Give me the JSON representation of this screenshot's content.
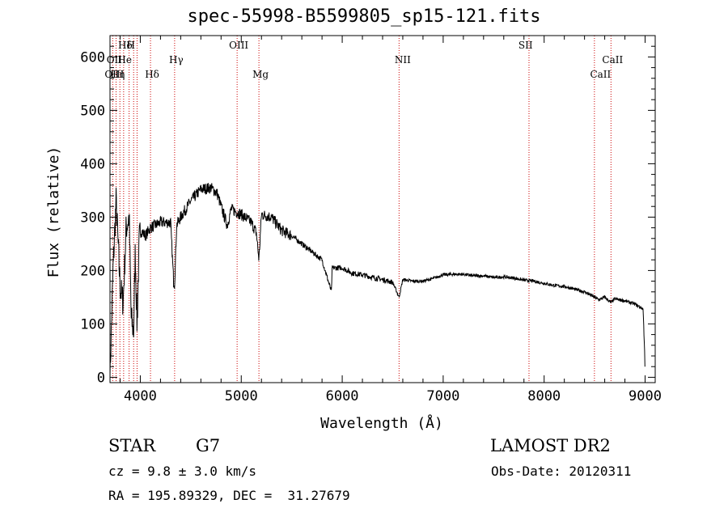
{
  "chart_data": {
    "type": "line",
    "title": "spec-55998-B5599805_sp15-121.fits",
    "xlabel": "Wavelength (Å)",
    "ylabel": "Flux (relative)",
    "xlim": [
      3700,
      9100
    ],
    "ylim": [
      -10,
      640
    ],
    "x_ticks": [
      "4000",
      "5000",
      "6000",
      "7000",
      "8000",
      "9000"
    ],
    "y_ticks": [
      "0",
      "100",
      "200",
      "300",
      "400",
      "500",
      "600"
    ],
    "line_color": "#000000",
    "marker_color": "#cc0000",
    "grid": false,
    "spectrum_anchors": {
      "x": [
        3700,
        3730,
        3760,
        3800,
        3830,
        3860,
        3890,
        3910,
        3934,
        3950,
        3968,
        3990,
        4010,
        4050,
        4100,
        4200,
        4300,
        4330,
        4340,
        4360,
        4400,
        4500,
        4600,
        4700,
        4760,
        4800,
        4861,
        4900,
        5000,
        5100,
        5150,
        5175,
        5200,
        5300,
        5400,
        5500,
        5600,
        5700,
        5800,
        5893,
        5900,
        6000,
        6100,
        6200,
        6300,
        6400,
        6500,
        6563,
        6600,
        6700,
        6800,
        6900,
        7000,
        7100,
        7200,
        7300,
        7400,
        7500,
        7600,
        7700,
        7800,
        7900,
        8000,
        8100,
        8200,
        8300,
        8400,
        8500,
        8542,
        8600,
        8662,
        8700,
        8800,
        8900,
        8980,
        8995,
        9000
      ],
      "y": [
        0,
        200,
        330,
        170,
        140,
        280,
        300,
        110,
        85,
        240,
        95,
        260,
        275,
        265,
        280,
        290,
        290,
        180,
        175,
        285,
        300,
        330,
        352,
        355,
        345,
        320,
        285,
        315,
        305,
        290,
        270,
        220,
        305,
        300,
        275,
        265,
        250,
        235,
        220,
        160,
        205,
        205,
        195,
        192,
        187,
        183,
        178,
        150,
        183,
        180,
        180,
        185,
        192,
        193,
        193,
        190,
        190,
        187,
        188,
        186,
        182,
        180,
        176,
        172,
        170,
        165,
        160,
        150,
        145,
        150,
        140,
        147,
        143,
        137,
        128,
        50,
        0
      ]
    },
    "annotations": [
      {
        "label": "Hδ",
        "x": 3835,
        "row": 1
      },
      {
        "label": "H",
        "x": 3890,
        "row": 1
      },
      {
        "label": "OII",
        "x": 3727,
        "row": 2
      },
      {
        "label": "He",
        "x": 3830,
        "row": 2
      },
      {
        "label": "Hγ",
        "x": 4340,
        "row": 2
      },
      {
        "label": "OIII",
        "x": 4959,
        "row": 1
      },
      {
        "label": "NII",
        "x": 6583,
        "row": 2
      },
      {
        "label": "SII",
        "x": 7800,
        "row": 1
      },
      {
        "label": "CaII",
        "x": 8662,
        "row": 2
      },
      {
        "label": "OIII",
        "x": 3727,
        "row": 3
      },
      {
        "label": "Hη",
        "x": 3760,
        "row": 3
      },
      {
        "label": "Hδ",
        "x": 4101,
        "row": 3
      },
      {
        "label": "Mg",
        "x": 5175,
        "row": 3
      },
      {
        "label": "CaII",
        "x": 8542,
        "row": 3
      }
    ],
    "marker_lines_x": [
      3727,
      3760,
      3798,
      3835,
      3889,
      3934,
      3968,
      4101,
      4340,
      4959,
      5175,
      6563,
      7850,
      8498,
      8662
    ]
  },
  "footer": {
    "object_type": "STAR",
    "subclass": "G7",
    "survey": "LAMOST DR2",
    "redshift": "cz = 9.8 ± 3.0 km/s",
    "obs_date": "Obs-Date: 20120311",
    "coords": "RA = 195.89329, DEC =  31.27679"
  }
}
